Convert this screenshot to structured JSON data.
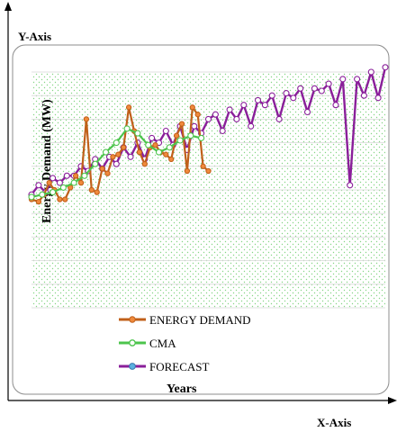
{
  "outer_axes": {
    "y_label": "Y-Axis",
    "x_label": "X-Axis"
  },
  "chart_data": {
    "type": "line",
    "title": "",
    "ylabel": "Energy Demand (MW)",
    "xlabel": "Years",
    "ylim": [
      0,
      10
    ],
    "xlim": [
      0,
      100
    ],
    "grid": true,
    "background": "dotted-green",
    "legend_position": "bottom",
    "series": [
      {
        "name": "ENERGY DEMAND",
        "color": "#c0601a",
        "marker_color": "#f08a3c",
        "x": [
          0,
          2,
          3.5,
          5,
          6.5,
          8,
          9.5,
          11,
          12.5,
          14,
          15.5,
          17,
          18.5,
          20,
          21.5,
          23,
          24.5,
          26,
          27.5,
          29,
          30.5,
          32,
          33.5,
          35,
          36.5,
          38,
          39.5,
          41,
          42.5,
          44,
          45.5,
          47,
          48.5,
          50
        ],
        "y": [
          4.6,
          4.5,
          4.8,
          5.3,
          5.0,
          4.6,
          4.6,
          5.1,
          5.6,
          5.3,
          8.0,
          5.0,
          4.9,
          5.9,
          5.7,
          6.4,
          6.5,
          6.8,
          8.5,
          7.5,
          6.6,
          6.1,
          6.8,
          6.9,
          6.6,
          6.5,
          6.3,
          7.3,
          7.8,
          5.8,
          8.5,
          8.2,
          6.0,
          5.8
        ]
      },
      {
        "name": "CMA",
        "color": "#4cc44c",
        "marker_color": "#ffffff",
        "x": [
          0,
          3,
          6,
          9,
          12,
          15,
          18,
          21,
          24,
          27,
          30,
          33,
          36,
          39,
          42,
          45,
          48
        ],
        "y": [
          4.7,
          4.8,
          4.9,
          5.1,
          5.3,
          5.6,
          6.1,
          6.6,
          7.0,
          7.6,
          7.4,
          6.9,
          6.6,
          6.8,
          7.1,
          7.3,
          7.2
        ]
      },
      {
        "name": "FORECAST",
        "color": "#8a1f9a",
        "marker_color": "#ffffff",
        "x": [
          0,
          2,
          4,
          6,
          8,
          10,
          12,
          14,
          16,
          18,
          20,
          22,
          24,
          26,
          28,
          30,
          32,
          34,
          36,
          38,
          40,
          42,
          44,
          46,
          48,
          50,
          52,
          54,
          56,
          58,
          60,
          62,
          64,
          66,
          68,
          70,
          72,
          74,
          76,
          78,
          80,
          82,
          84,
          86,
          88,
          90,
          92,
          94,
          96,
          98,
          100
        ],
        "y": [
          4.8,
          5.2,
          4.9,
          5.5,
          5.3,
          5.6,
          5.6,
          6.0,
          5.8,
          6.3,
          5.9,
          6.4,
          6.1,
          6.8,
          6.4,
          7.0,
          6.3,
          7.2,
          7.0,
          7.5,
          6.9,
          7.7,
          6.7,
          7.7,
          7.4,
          8.0,
          8.2,
          7.5,
          8.4,
          8.0,
          8.6,
          7.7,
          8.8,
          8.6,
          9.0,
          8.0,
          9.1,
          8.9,
          9.3,
          8.3,
          9.3,
          9.2,
          9.5,
          8.6,
          9.7,
          5.2,
          9.7,
          9.0,
          10.0,
          8.9,
          10.2
        ]
      }
    ]
  }
}
